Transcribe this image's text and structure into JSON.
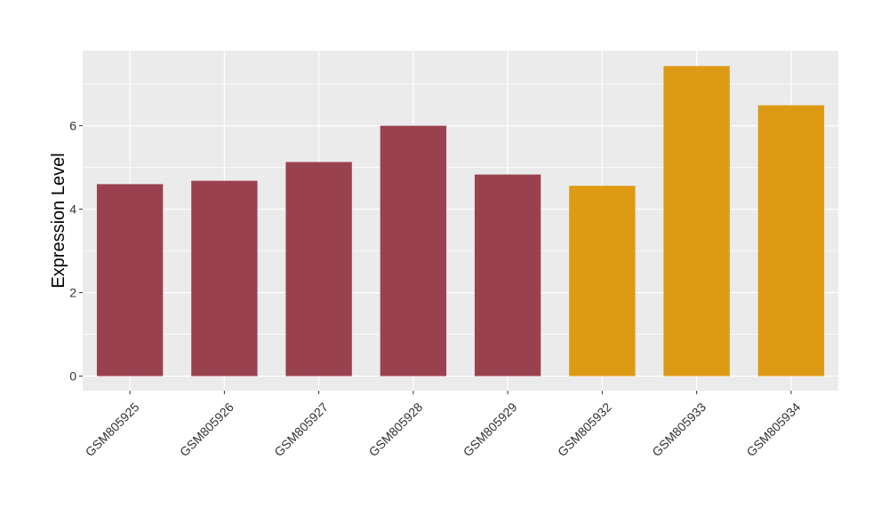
{
  "chart_data": {
    "type": "bar",
    "title": "",
    "xlabel": "",
    "ylabel": "Expression Level",
    "categories": [
      "GSM805925",
      "GSM805926",
      "GSM805927",
      "GSM805928",
      "GSM805929",
      "GSM805932",
      "GSM805933",
      "GSM805934"
    ],
    "values": [
      4.6,
      4.68,
      5.13,
      6.0,
      4.83,
      4.56,
      7.43,
      6.49
    ],
    "bar_colors": [
      "#9a4150",
      "#9a4150",
      "#9a4150",
      "#9a4150",
      "#9a4150",
      "#dd9a14",
      "#dd9a14",
      "#dd9a14"
    ],
    "ylim": [
      -0.35,
      7.8
    ],
    "y_ticks": [
      0,
      2,
      4,
      6
    ],
    "grid": true,
    "panel_background": "#ebebeb",
    "gridline_color": "#ffffff"
  }
}
